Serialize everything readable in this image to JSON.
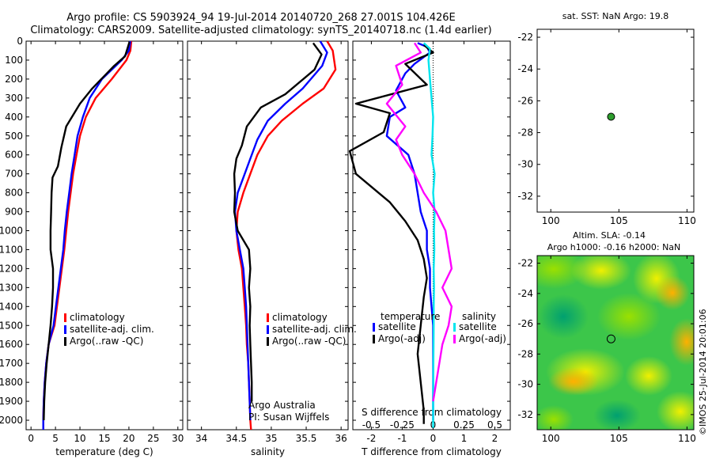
{
  "header": {
    "line1": "Argo profile: CS 5903924_94 19-Jul-2014 20140720_268 27.001S 104.426E",
    "line2": "Climatology: CARS2009. Satellite-adjusted climatology: synTS_20140718.nc (1.4d earlier)"
  },
  "colors": {
    "climatology": "#ff0000",
    "satellite": "#0000ff",
    "argo": "#000000",
    "sal_satellite": "#00e5ee",
    "sal_argo": "#ff00ff",
    "sst_dot": "#2e9e2e"
  },
  "chart_data": [
    {
      "id": "temperature",
      "type": "line",
      "xlabel": "temperature (deg C)",
      "ylabel": "",
      "xlim": [
        -1,
        31
      ],
      "ylim": [
        2050,
        0
      ],
      "xticks": [
        "0",
        "5",
        "10",
        "15",
        "20",
        "25",
        "30"
      ],
      "yticks": [
        "0",
        "100",
        "200",
        "300",
        "400",
        "500",
        "600",
        "700",
        "800",
        "900",
        "1000",
        "1100",
        "1200",
        "1300",
        "1400",
        "1500",
        "1600",
        "1700",
        "1800",
        "1900",
        "2000"
      ],
      "legend": [
        "climatology",
        "satellite-adj. clim.",
        "Argo(..raw -QC)"
      ],
      "series": [
        {
          "name": "climatology",
          "color": "climatology",
          "x": [
            20.5,
            20.3,
            19.5,
            16.5,
            13.2,
            11.2,
            10.0,
            9.3,
            8.6,
            8.1,
            7.6,
            7.2,
            6.8,
            6.3,
            5.8,
            5.3,
            4.8,
            3.6,
            3.1,
            2.8,
            2.6,
            2.5,
            2.5
          ],
          "y": [
            0,
            50,
            100,
            200,
            300,
            400,
            500,
            600,
            700,
            800,
            900,
            1000,
            1100,
            1200,
            1300,
            1400,
            1500,
            1600,
            1700,
            1800,
            1900,
            2000,
            2050
          ]
        },
        {
          "name": "satellite-adj. clim.",
          "color": "satellite",
          "x": [
            20.3,
            20.0,
            18.5,
            14.5,
            12.0,
            10.6,
            9.5,
            8.9,
            8.3,
            7.8,
            7.3,
            6.9,
            6.6,
            6.1,
            5.6,
            5.1,
            4.6,
            3.6,
            3.1,
            2.8,
            2.6,
            2.5,
            2.5
          ],
          "y": [
            0,
            50,
            100,
            200,
            300,
            400,
            500,
            600,
            700,
            800,
            900,
            1000,
            1100,
            1200,
            1300,
            1400,
            1500,
            1600,
            1700,
            1800,
            1900,
            2000,
            2050
          ]
        },
        {
          "name": "Argo(..raw -QC)",
          "color": "argo",
          "x": [
            20.1,
            19.2,
            17.0,
            12.5,
            10.0,
            7.2,
            6.2,
            5.5,
            4.4,
            4.2,
            4.1,
            4.0,
            4.0,
            4.5,
            4.5,
            4.3,
            4.0,
            3.6,
            3.2,
            2.9,
            2.7,
            2.6
          ],
          "y": [
            5,
            80,
            130,
            250,
            330,
            450,
            560,
            660,
            720,
            800,
            900,
            1000,
            1100,
            1200,
            1300,
            1400,
            1500,
            1600,
            1700,
            1800,
            1900,
            2000
          ]
        }
      ]
    },
    {
      "id": "salinity",
      "type": "line",
      "xlabel": "salinity",
      "xlim": [
        33.8,
        36.1
      ],
      "ylim": [
        2050,
        0
      ],
      "xticks": [
        "34",
        "34.5",
        "35",
        "35.5",
        "36"
      ],
      "legend": [
        "climatology",
        "satellite-adj. clim.",
        "Argo(..raw -QC)"
      ],
      "annotation": [
        "Argo Australia",
        "PI: Susan Wijffels"
      ],
      "series": [
        {
          "name": "climatology",
          "color": "climatology",
          "x": [
            35.8,
            35.88,
            35.92,
            35.75,
            35.45,
            35.15,
            34.95,
            34.8,
            34.7,
            34.6,
            34.52,
            34.5,
            34.53,
            34.58,
            34.6,
            34.62,
            34.64,
            34.65,
            34.67,
            34.68,
            34.69,
            34.7,
            34.71
          ],
          "y": [
            0,
            50,
            150,
            250,
            330,
            420,
            500,
            600,
            700,
            800,
            900,
            1000,
            1100,
            1200,
            1300,
            1400,
            1500,
            1600,
            1700,
            1800,
            1900,
            2000,
            2050
          ]
        },
        {
          "name": "satellite-adj. clim.",
          "color": "satellite",
          "x": [
            35.7,
            35.8,
            35.73,
            35.45,
            35.2,
            34.95,
            34.8,
            34.7,
            34.6,
            34.52,
            34.48,
            34.5,
            34.55,
            34.6,
            34.62,
            34.64,
            34.65,
            34.66,
            34.67,
            34.68,
            34.69,
            34.7
          ],
          "y": [
            0,
            60,
            130,
            250,
            330,
            420,
            520,
            620,
            720,
            800,
            900,
            1000,
            1100,
            1200,
            1300,
            1400,
            1500,
            1600,
            1700,
            1800,
            1900,
            2000
          ]
        },
        {
          "name": "Argo(..raw -QC)",
          "color": "argo",
          "x": [
            35.6,
            35.72,
            35.62,
            35.2,
            34.85,
            34.65,
            34.58,
            34.5,
            34.47,
            34.48,
            34.47,
            34.52,
            34.68,
            34.7,
            34.68,
            34.7,
            34.69,
            34.7,
            34.71,
            34.72,
            34.72
          ],
          "y": [
            10,
            70,
            150,
            280,
            350,
            450,
            550,
            620,
            700,
            800,
            900,
            1000,
            1100,
            1200,
            1300,
            1400,
            1500,
            1600,
            1700,
            1800,
            1900
          ]
        }
      ]
    },
    {
      "id": "difference",
      "type": "line",
      "xlabel": "T difference from climatology",
      "x2label": "S difference from climatology",
      "xlim": [
        -2.6,
        2.5
      ],
      "ylim": [
        2050,
        0
      ],
      "xticks": [
        "-2",
        "-1",
        "0",
        "1",
        "2"
      ],
      "x2ticks": [
        "-0.5",
        "-0.25",
        "0",
        "0.25",
        "0.5"
      ],
      "legend_title": [
        "temperature",
        "salinity"
      ],
      "legend": [
        "satellite",
        "Argo(-adj)",
        "satellite",
        "Argo(-adj)"
      ],
      "series": [
        {
          "name": "satellite",
          "group": "temperature",
          "color": "satellite",
          "x": [
            -0.5,
            -0.2,
            -0.1,
            -0.6,
            -0.9,
            -1.2,
            -0.9,
            -1.4,
            -1.5,
            -0.8,
            -0.6,
            -0.5,
            -0.4,
            -0.2,
            -0.2,
            -0.1,
            -0.1,
            0,
            0,
            0
          ],
          "y": [
            10,
            30,
            60,
            120,
            170,
            260,
            350,
            400,
            500,
            600,
            700,
            800,
            900,
            1000,
            1100,
            1200,
            1300,
            1500,
            1700,
            2000
          ]
        },
        {
          "name": "Argo(-adj)",
          "group": "temperature",
          "color": "argo",
          "x": [
            -0.3,
            0.0,
            -0.9,
            -0.2,
            -2.5,
            -1.4,
            -1.6,
            -2.7,
            -2.5,
            -1.4,
            -0.9,
            -0.5,
            -0.3,
            -0.2,
            -0.3,
            -0.4,
            -0.5,
            -0.4,
            -0.3,
            -0.3
          ],
          "y": [
            20,
            60,
            120,
            230,
            330,
            380,
            480,
            580,
            700,
            850,
            950,
            1050,
            1150,
            1250,
            1350,
            1500,
            1650,
            1800,
            1950,
            2020
          ]
        },
        {
          "name": "satellite",
          "group": "salinity",
          "color": "sal_satellite",
          "x": [
            -0.3,
            -0.1,
            -0.15,
            -0.1,
            -0.05,
            0.0,
            -0.02,
            -0.05,
            0.05,
            0.0,
            0.05,
            0.03,
            0.04,
            0.02,
            0.03,
            0.02,
            0.02,
            0.01,
            0.0,
            0.0
          ],
          "y": [
            10,
            40,
            100,
            200,
            300,
            400,
            500,
            600,
            700,
            800,
            900,
            1000,
            1100,
            1200,
            1300,
            1400,
            1500,
            1700,
            1900,
            2040
          ]
        },
        {
          "name": "Argo(-adj)",
          "group": "salinity",
          "color": "sal_argo",
          "x": [
            -0.6,
            -0.4,
            -1.2,
            -1.0,
            -1.5,
            -0.9,
            -1.2,
            -1.0,
            -0.6,
            -0.3,
            0.1,
            0.4,
            0.5,
            0.6,
            0.3,
            0.6,
            0.5,
            0.3,
            0.2,
            0.1,
            0.0
          ],
          "y": [
            10,
            60,
            130,
            230,
            330,
            450,
            520,
            600,
            700,
            800,
            900,
            1000,
            1100,
            1200,
            1300,
            1400,
            1500,
            1600,
            1700,
            1800,
            1900
          ]
        }
      ]
    },
    {
      "id": "sst_map",
      "type": "scatter",
      "title": "sat. SST: NaN Argo: 19.8",
      "xlim": [
        99,
        110.5
      ],
      "ylim": [
        -33,
        -21.5
      ],
      "xticks": [
        "100",
        "105",
        "110"
      ],
      "yticks": [
        "-22",
        "-24",
        "-26",
        "-28",
        "-30",
        "-32"
      ],
      "points": [
        {
          "x": 104.426,
          "y": -27.001
        }
      ]
    },
    {
      "id": "sla_map",
      "type": "heatmap",
      "title1": "Altim. SLA: -0.14",
      "title2": "Argo h1000: -0.16 h2000: NaN",
      "xlim": [
        99,
        110.5
      ],
      "ylim": [
        -33,
        -21.5
      ],
      "xticks": [
        "100",
        "105",
        "110"
      ],
      "yticks": [
        "-22",
        "-24",
        "-26",
        "-28",
        "-30",
        "-32"
      ],
      "points": [
        {
          "x": 104.426,
          "y": -27.001
        }
      ]
    }
  ],
  "watermark": "©IMOS 25-Jul-2014 20:01:06"
}
